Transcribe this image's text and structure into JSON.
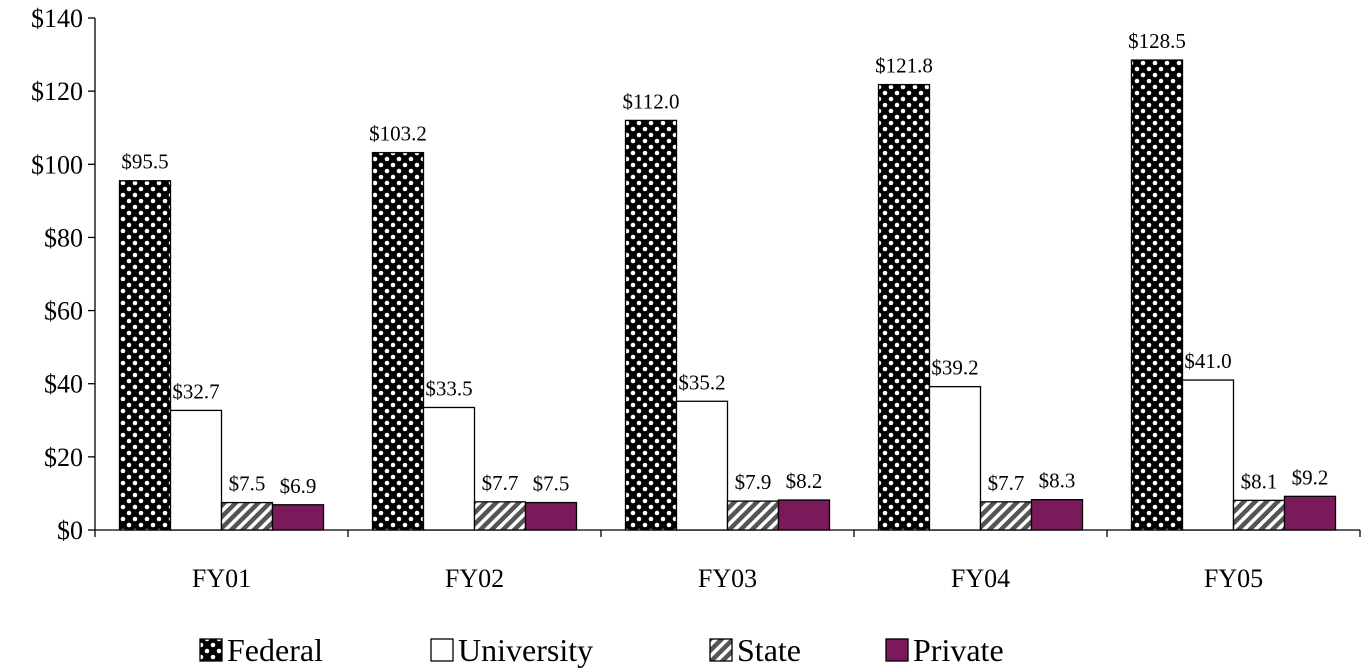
{
  "chart_data": {
    "type": "bar",
    "categories": [
      "FY01",
      "FY02",
      "FY03",
      "FY04",
      "FY05"
    ],
    "series": [
      {
        "name": "Federal",
        "values": [
          95.5,
          103.2,
          112.0,
          121.8,
          128.5
        ],
        "labels": [
          "$95.5",
          "$103.2",
          "$112.0",
          "$121.8",
          "$128.5"
        ],
        "pattern": "checker",
        "color": "#000000"
      },
      {
        "name": "University",
        "values": [
          32.7,
          33.5,
          35.2,
          39.2,
          41.0
        ],
        "labels": [
          "$32.7",
          "$33.5",
          "$35.2",
          "$39.2",
          "$41.0"
        ],
        "pattern": "none",
        "color": "#ffffff"
      },
      {
        "name": "State",
        "values": [
          7.5,
          7.7,
          7.9,
          7.7,
          8.1
        ],
        "labels": [
          "$7.5",
          "$7.7",
          "$7.9",
          "$7.7",
          "$8.1"
        ],
        "pattern": "diagonal",
        "color": "#555555"
      },
      {
        "name": "Private",
        "values": [
          6.9,
          7.5,
          8.2,
          8.3,
          9.2
        ],
        "labels": [
          "$6.9",
          "$7.5",
          "$8.2",
          "$8.3",
          "$9.2"
        ],
        "pattern": "solid",
        "color": "#7b1a5a"
      }
    ],
    "yticks": [
      "$0",
      "$20",
      "$40",
      "$60",
      "$80",
      "$100",
      "$120",
      "$140"
    ],
    "ylim": [
      0,
      140
    ],
    "ystep": 20,
    "grid": false,
    "legend_position": "bottom",
    "title": "",
    "xlabel": "",
    "ylabel": ""
  }
}
